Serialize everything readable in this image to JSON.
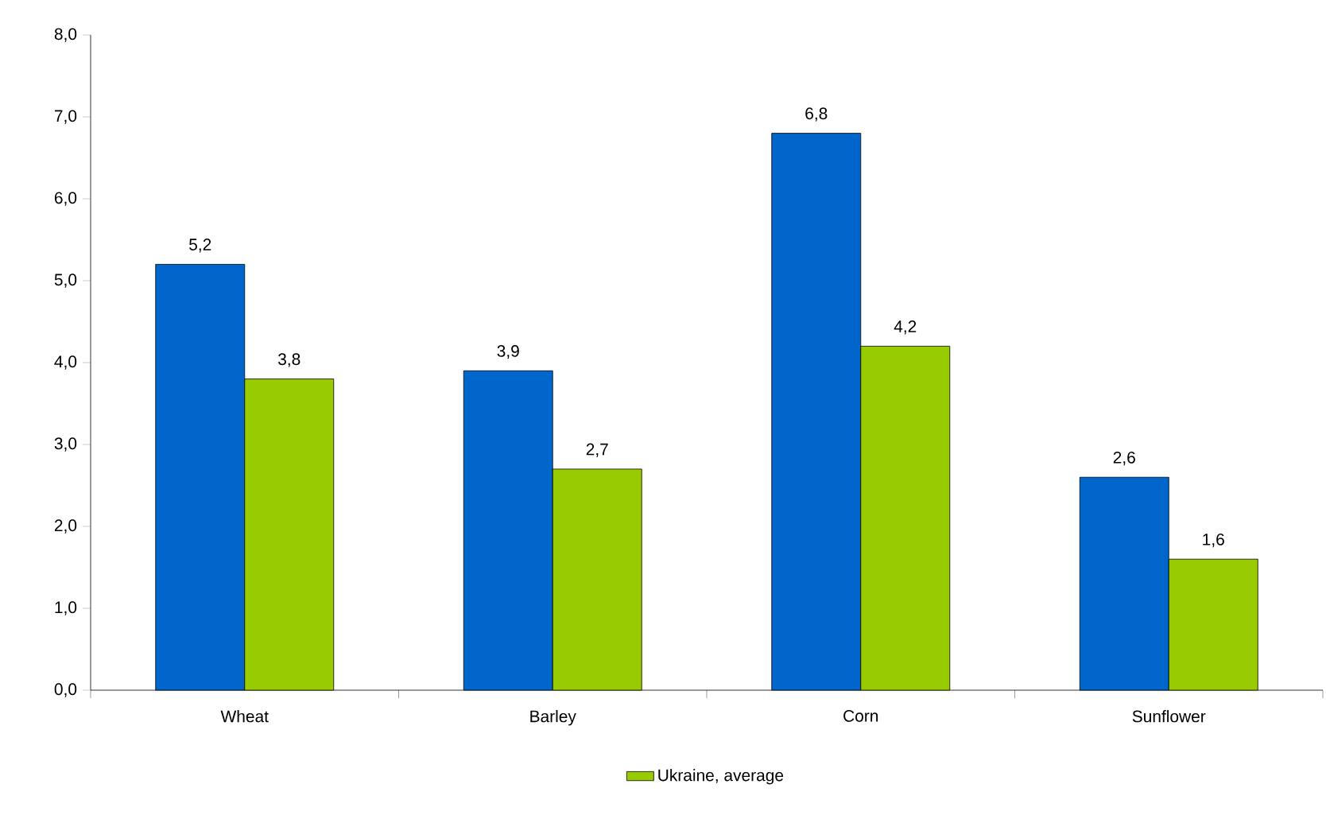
{
  "chart_data": {
    "type": "bar",
    "categories": [
      "Wheat",
      "Barley",
      "Corn",
      "Sunflower"
    ],
    "series": [
      {
        "color": "#0066cc",
        "values": [
          5.2,
          3.9,
          6.8,
          2.6
        ],
        "value_labels": [
          "5,2",
          "3,9",
          "6,8",
          "2,6"
        ]
      },
      {
        "name": "Ukraine, average",
        "color": "#99cc00",
        "values": [
          3.8,
          2.7,
          4.2,
          1.6
        ],
        "value_labels": [
          "3,8",
          "2,7",
          "4,2",
          "1,6"
        ]
      }
    ],
    "ylim": [
      0,
      8
    ],
    "yticks": [
      {
        "value": 0,
        "label": "0,0"
      },
      {
        "value": 1,
        "label": "1,0"
      },
      {
        "value": 2,
        "label": "2,0"
      },
      {
        "value": 3,
        "label": "3,0"
      },
      {
        "value": 4,
        "label": "4,0"
      },
      {
        "value": 5,
        "label": "5,0"
      },
      {
        "value": 6,
        "label": "6,0"
      },
      {
        "value": 7,
        "label": "7,0"
      },
      {
        "value": 8,
        "label": "8,0"
      }
    ],
    "grid": false,
    "legend": "bottom"
  }
}
